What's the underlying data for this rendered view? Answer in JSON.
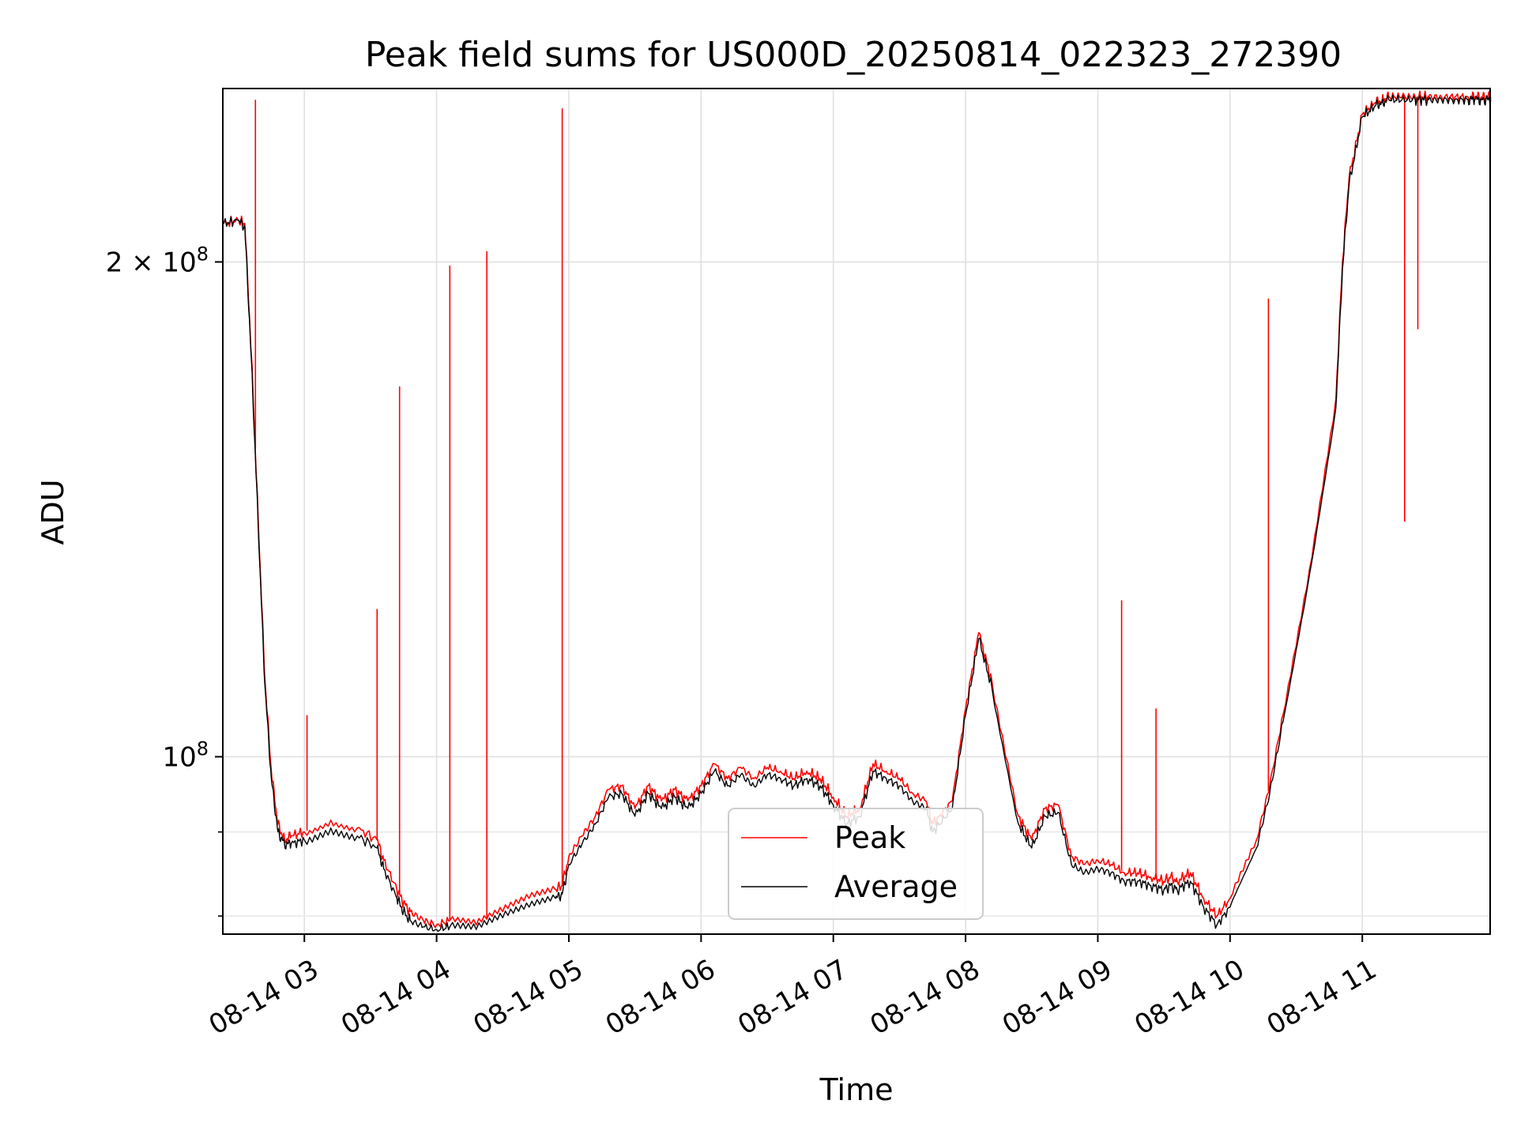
{
  "chart_data": {
    "type": "line",
    "title": "Peak field sums for US000D_20250814_022323_272390",
    "xlabel": "Time",
    "ylabel": "ADU",
    "yscale": "log",
    "x_range": [
      "2025-08-14 02:23",
      "2025-08-14 11:58"
    ],
    "ylim": [
      78000000,
      255000000
    ],
    "x_ticks": [
      {
        "value": 3,
        "label": "08-14 03"
      },
      {
        "value": 4,
        "label": "08-14 04"
      },
      {
        "value": 5,
        "label": "08-14 05"
      },
      {
        "value": 6,
        "label": "08-14 06"
      },
      {
        "value": 7,
        "label": "08-14 07"
      },
      {
        "value": 8,
        "label": "08-14 08"
      },
      {
        "value": 9,
        "label": "08-14 09"
      },
      {
        "value": 10,
        "label": "08-14 10"
      },
      {
        "value": 11,
        "label": "08-14 11"
      }
    ],
    "y_major_ticks": [
      {
        "value": 100000000,
        "base": "10",
        "exp": "8",
        "coef": ""
      },
      {
        "value": 200000000,
        "base": "10",
        "exp": "8",
        "coef": "2 × "
      }
    ],
    "y_minor_ticks": [
      80000000,
      90000000
    ],
    "grid": true,
    "legend_position": "lower-center",
    "series": [
      {
        "name": "Peak",
        "color": "#ff0000",
        "time_hours": [
          2.39,
          2.5,
          2.55,
          2.6,
          2.65,
          2.7,
          2.75,
          2.8,
          2.85,
          2.9,
          3.0,
          3.2,
          3.4,
          3.55,
          3.6,
          3.7,
          3.75,
          3.8,
          3.9,
          4.0,
          4.1,
          4.3,
          4.5,
          4.7,
          4.9,
          4.95,
          5.0,
          5.1,
          5.2,
          5.3,
          5.4,
          5.5,
          5.6,
          5.7,
          5.8,
          5.9,
          6.0,
          6.1,
          6.2,
          6.3,
          6.4,
          6.5,
          6.6,
          6.7,
          6.8,
          6.9,
          7.0,
          7.1,
          7.2,
          7.3,
          7.4,
          7.5,
          7.6,
          7.7,
          7.75,
          7.8,
          7.9,
          8.0,
          8.1,
          8.2,
          8.4,
          8.5,
          8.6,
          8.7,
          8.8,
          8.9,
          9.0,
          9.1,
          9.2,
          9.3,
          9.4,
          9.5,
          9.55,
          9.6,
          9.7,
          9.8,
          9.9,
          10.0,
          10.2,
          10.3,
          10.4,
          10.6,
          10.8,
          10.85,
          10.9,
          11.0,
          11.1,
          11.15,
          11.2,
          11.3,
          11.4,
          11.45,
          11.5,
          11.6,
          11.7,
          11.8,
          11.85,
          11.9,
          11.95,
          11.97
        ],
        "values": [
          211000000,
          212000000,
          211000000,
          175000000,
          140000000,
          112000000,
          98000000,
          91000000,
          89000000,
          89500000,
          90000000,
          91500000,
          90500000,
          89000000,
          86500000,
          83000000,
          81500000,
          80500000,
          79500000,
          79000000,
          79500000,
          79000000,
          80500000,
          82000000,
          83000000,
          83500000,
          87000000,
          89500000,
          92000000,
          95500000,
          96000000,
          93000000,
          96000000,
          94000000,
          95500000,
          94000000,
          96000000,
          99000000,
          97000000,
          98500000,
          97000000,
          98500000,
          98000000,
          97000000,
          98000000,
          97000000,
          94500000,
          92000000,
          93000000,
          99000000,
          98000000,
          97000000,
          95000000,
          94000000,
          91000000,
          92000000,
          94000000,
          107000000,
          119000000,
          111000000,
          92000000,
          89000000,
          93000000,
          93500000,
          87000000,
          86000000,
          86500000,
          86000000,
          85000000,
          85000000,
          84500000,
          84000000,
          84500000,
          84000000,
          85000000,
          82000000,
          80000000,
          82000000,
          89000000,
          96000000,
          106000000,
          130000000,
          165000000,
          200000000,
          225000000,
          246000000,
          250000000,
          251000000,
          252000000,
          252000000,
          252000000,
          252000000,
          252000000,
          252000000,
          252000000,
          252000000,
          252000000,
          252000000,
          252000000,
          252000000
        ],
        "spikes": [
          {
            "time": 2.63,
            "value": 251000000
          },
          {
            "time": 3.02,
            "value": 106000000
          },
          {
            "time": 3.55,
            "value": 123000000
          },
          {
            "time": 3.72,
            "value": 168000000
          },
          {
            "time": 4.1,
            "value": 199000000
          },
          {
            "time": 4.38,
            "value": 203000000
          },
          {
            "time": 4.95,
            "value": 248000000
          },
          {
            "time": 9.18,
            "value": 124500000
          },
          {
            "time": 9.44,
            "value": 107000000
          },
          {
            "time": 10.29,
            "value": 190000000
          },
          {
            "time": 11.18,
            "value": 250000000
          },
          {
            "time": 11.32,
            "value": 139000000
          },
          {
            "time": 11.42,
            "value": 182000000
          }
        ]
      },
      {
        "name": "Average",
        "color": "#000000",
        "time_hours": [
          2.39,
          2.5,
          2.55,
          2.6,
          2.65,
          2.7,
          2.75,
          2.8,
          2.85,
          2.9,
          3.0,
          3.2,
          3.4,
          3.55,
          3.6,
          3.7,
          3.75,
          3.8,
          3.9,
          4.0,
          4.1,
          4.3,
          4.5,
          4.7,
          4.9,
          4.95,
          5.0,
          5.1,
          5.2,
          5.3,
          5.4,
          5.5,
          5.6,
          5.7,
          5.8,
          5.9,
          6.0,
          6.1,
          6.2,
          6.3,
          6.4,
          6.5,
          6.6,
          6.7,
          6.8,
          6.9,
          7.0,
          7.1,
          7.2,
          7.3,
          7.4,
          7.5,
          7.6,
          7.7,
          7.75,
          7.8,
          7.9,
          8.0,
          8.1,
          8.2,
          8.4,
          8.5,
          8.6,
          8.7,
          8.8,
          8.9,
          9.0,
          9.1,
          9.2,
          9.3,
          9.4,
          9.5,
          9.55,
          9.6,
          9.7,
          9.8,
          9.9,
          10.0,
          10.2,
          10.3,
          10.4,
          10.6,
          10.8,
          10.85,
          10.9,
          11.0,
          11.1,
          11.15,
          11.2,
          11.3,
          11.4,
          11.45,
          11.5,
          11.6,
          11.7,
          11.8,
          11.85,
          11.9,
          11.95,
          11.97
        ],
        "values": [
          211000000,
          212000000,
          210000000,
          174000000,
          139000000,
          111000000,
          97000000,
          90000000,
          88500000,
          88500000,
          89000000,
          90500000,
          89500000,
          88000000,
          85500000,
          82000000,
          80500000,
          79500000,
          78800000,
          78500000,
          78800000,
          78500000,
          79800000,
          81000000,
          82000000,
          82500000,
          86000000,
          88500000,
          91000000,
          94500000,
          95000000,
          92000000,
          95000000,
          93000000,
          94500000,
          93000000,
          95000000,
          98000000,
          96000000,
          97500000,
          96000000,
          97500000,
          97000000,
          96000000,
          97000000,
          96000000,
          93500000,
          91000000,
          92000000,
          98000000,
          97000000,
          96000000,
          94000000,
          93000000,
          90000000,
          91000000,
          93000000,
          106000000,
          118000000,
          110000000,
          91000000,
          88000000,
          92000000,
          92500000,
          86000000,
          85000000,
          85500000,
          85000000,
          84000000,
          84000000,
          83500000,
          83000000,
          83500000,
          83000000,
          84000000,
          81000000,
          79000000,
          81000000,
          88000000,
          95000000,
          105000000,
          129000000,
          163000000,
          198000000,
          223000000,
          245000000,
          249000000,
          250000000,
          251000000,
          251000000,
          251000000,
          251000000,
          251000000,
          251000000,
          251000000,
          251000000,
          251000000,
          251000000,
          251000000,
          251000000
        ],
        "spikes": []
      }
    ]
  }
}
